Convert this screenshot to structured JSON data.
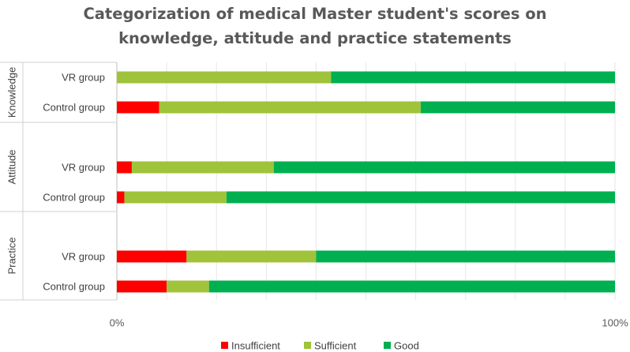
{
  "chart_data": {
    "type": "bar",
    "orientation": "horizontal",
    "stacked": "100%",
    "title_lines": [
      "Categorization of medical Master student's scores on",
      "knowledge, attitude and practice statements"
    ],
    "groups": [
      {
        "label": "Knowledge",
        "categories": [
          "VR group",
          "Control group"
        ]
      },
      {
        "label": "Attitude",
        "categories": [
          "VR group",
          "Control group"
        ]
      },
      {
        "label": "Practice",
        "categories": [
          "VR group",
          "Control group"
        ]
      }
    ],
    "series": [
      {
        "name": "Insufficient",
        "color": "#ff0000",
        "values": [
          0,
          8.5,
          3,
          1.5,
          14,
          10
        ]
      },
      {
        "name": "Sufficient",
        "color": "#9fc33a",
        "values": [
          43,
          52.5,
          28.5,
          20.5,
          26,
          8.5
        ]
      },
      {
        "name": "Good",
        "color": "#00b050",
        "values": [
          57,
          39,
          68.5,
          78,
          60,
          81.5
        ]
      }
    ],
    "x_tick_labels": [
      "0%",
      "100%"
    ],
    "xlim": [
      0,
      100
    ],
    "grid": true,
    "legend": "bottom"
  }
}
